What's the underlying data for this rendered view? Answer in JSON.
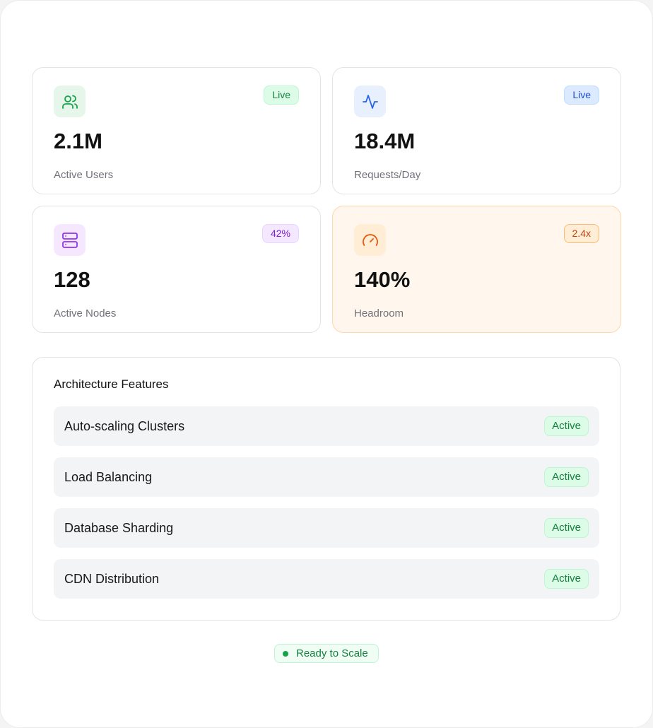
{
  "stats": [
    {
      "value": "2.1M",
      "label": "Active Users",
      "badge": "Live"
    },
    {
      "value": "18.4M",
      "label": "Requests/Day",
      "badge": "Live"
    },
    {
      "value": "128",
      "label": "Active Nodes",
      "badge": "42%"
    },
    {
      "value": "140%",
      "label": "Headroom",
      "badge": "2.4x"
    }
  ],
  "features": {
    "title": "Architecture Features",
    "items": [
      {
        "name": "Auto-scaling Clusters",
        "status": "Active"
      },
      {
        "name": "Load Balancing",
        "status": "Active"
      },
      {
        "name": "Database Sharding",
        "status": "Active"
      },
      {
        "name": "CDN Distribution",
        "status": "Active"
      }
    ]
  },
  "footer": {
    "status": "Ready to Scale"
  }
}
